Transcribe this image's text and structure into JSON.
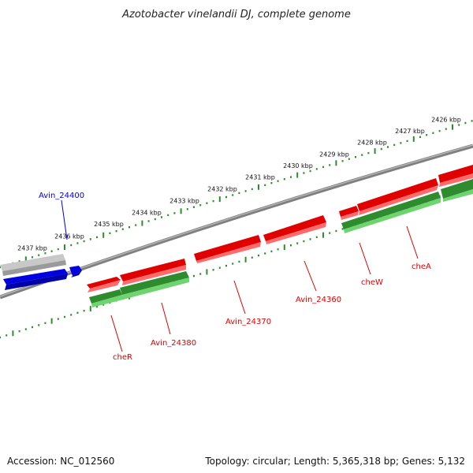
{
  "title": "Azotobacter vinelandii DJ, complete genome",
  "footer": {
    "accession": "Accession: NC_012560",
    "summary": "Topology: circular; Length: 5,365,318 bp; Genes: 5,132"
  },
  "colors": {
    "forward": "#e00000",
    "reverse": "#2ea02e",
    "highlight": "#0000e0",
    "backbone": "#808080",
    "ticks": "#2e8b2e"
  },
  "scale_labels": [
    "2426 kbp",
    "2427 kbp",
    "2428 kbp",
    "2429 kbp",
    "2430 kbp",
    "2431 kbp",
    "2432 kbp",
    "2433 kbp",
    "2434 kbp",
    "2435 kbp",
    "2436 kbp",
    "2437 kbp"
  ],
  "genes": [
    {
      "label": "Avin_24400",
      "strand": "forward",
      "color": "highlight"
    },
    {
      "label": "cheR",
      "strand": "reverse",
      "color": "forward"
    },
    {
      "label": "Avin_24380",
      "strand": "reverse",
      "color": "forward"
    },
    {
      "label": "Avin_24370",
      "strand": "forward",
      "color": "forward"
    },
    {
      "label": "Avin_24360",
      "strand": "forward",
      "color": "forward"
    },
    {
      "label": "cheW",
      "strand": "forward",
      "color": "forward"
    },
    {
      "label": "cheA",
      "strand": "forward",
      "color": "forward"
    }
  ]
}
